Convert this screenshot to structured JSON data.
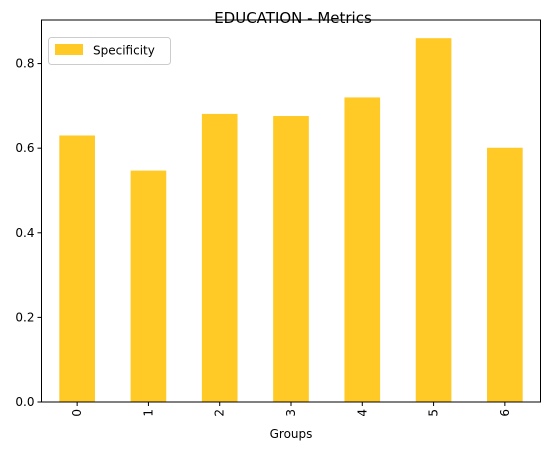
{
  "chart_data": {
    "type": "bar",
    "title": "EDUCATION - Metrics",
    "xlabel": "Groups",
    "ylabel": "",
    "categories": [
      "0",
      "1",
      "2",
      "3",
      "4",
      "5",
      "6"
    ],
    "series": [
      {
        "name": "Specificity",
        "values": [
          0.63,
          0.547,
          0.681,
          0.676,
          0.72,
          0.86,
          0.601
        ]
      }
    ],
    "ylim": [
      0,
      0.903
    ],
    "yticks": [
      0.0,
      0.2,
      0.4,
      0.6,
      0.8
    ],
    "ytick_labels": [
      "0.0",
      "0.2",
      "0.4",
      "0.6",
      "0.8"
    ],
    "grid": false,
    "legend_position": "top-left",
    "colors": {
      "bar": "#FFC926",
      "axis": "#000000",
      "legend_border": "#cccccc"
    }
  }
}
